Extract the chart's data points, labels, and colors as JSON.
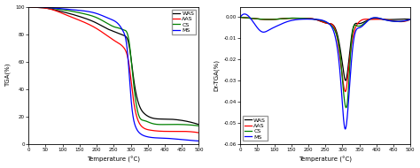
{
  "tga": {
    "x_range": [
      0,
      500
    ],
    "y_range": [
      0,
      100
    ],
    "xlabel": "Temperature (°C)",
    "ylabel": "TGA(%)",
    "xticks": [
      0,
      50,
      100,
      150,
      200,
      250,
      300,
      350,
      400,
      450,
      500
    ],
    "yticks": [
      0,
      20,
      40,
      60,
      80,
      100
    ],
    "legend_labels": [
      "WAS",
      "AAS",
      "CS",
      "MS"
    ],
    "curves": {
      "WAS": {
        "color": "black",
        "points_x": [
          0,
          25,
          50,
          80,
          120,
          160,
          200,
          230,
          260,
          280,
          295,
          310,
          325,
          340,
          360,
          400,
          450,
          500
        ],
        "points_y": [
          100,
          99.5,
          99,
          97.5,
          95,
          92,
          88,
          84,
          81,
          79,
          72,
          45,
          28,
          22,
          19,
          18,
          17,
          14
        ]
      },
      "AAS": {
        "color": "red",
        "points_x": [
          0,
          25,
          50,
          80,
          120,
          160,
          200,
          230,
          260,
          280,
          295,
          308,
          320,
          335,
          355,
          400,
          450,
          500
        ],
        "points_y": [
          100,
          99.5,
          99,
          97,
          93,
          89,
          84,
          79,
          74,
          70,
          58,
          32,
          18,
          12,
          10,
          9,
          9,
          8
        ]
      },
      "CS": {
        "color": "green",
        "points_x": [
          0,
          25,
          50,
          80,
          120,
          160,
          200,
          230,
          255,
          270,
          280,
          295,
          308,
          322,
          338,
          360,
          400,
          450,
          500
        ],
        "points_y": [
          100,
          100,
          99.5,
          98.5,
          97,
          95,
          92,
          88,
          85,
          84,
          83,
          75,
          45,
          22,
          17,
          15,
          14,
          14,
          13
        ]
      },
      "MS": {
        "color": "blue",
        "points_x": [
          0,
          25,
          50,
          80,
          120,
          160,
          200,
          240,
          265,
          278,
          290,
          302,
          315,
          330,
          350,
          400,
          450,
          500
        ],
        "points_y": [
          100,
          100,
          99.5,
          99,
          98,
          97,
          95,
          91,
          87,
          82,
          68,
          30,
          12,
          7,
          5,
          4,
          3,
          2
        ]
      }
    }
  },
  "drtga": {
    "x_range": [
      0,
      500
    ],
    "y_range": [
      -0.06,
      0.005
    ],
    "xlabel": "Temperature (°C)",
    "ylabel": "Dr-TGA(%)",
    "xticks": [
      0,
      50,
      100,
      150,
      200,
      250,
      300,
      350,
      400,
      450,
      500
    ],
    "yticks": [
      0.0,
      -0.01,
      -0.02,
      -0.03,
      -0.04,
      -0.05,
      -0.06
    ],
    "legend_labels": [
      "WAS",
      "AAS",
      "CS",
      "MS"
    ],
    "curves": {
      "WAS": {
        "color": "black",
        "points_x": [
          0,
          30,
          70,
          100,
          140,
          180,
          220,
          260,
          285,
          300,
          310,
          318,
          328,
          345,
          380,
          420,
          460,
          500
        ],
        "points_y": [
          0,
          -0.0005,
          -0.001,
          -0.001,
          -0.0005,
          -0.0005,
          -0.001,
          -0.003,
          -0.008,
          -0.022,
          -0.03,
          -0.022,
          -0.008,
          -0.003,
          -0.001,
          -0.001,
          -0.001,
          -0.001
        ]
      },
      "AAS": {
        "color": "red",
        "points_x": [
          0,
          30,
          70,
          100,
          140,
          180,
          220,
          260,
          285,
          300,
          310,
          318,
          330,
          345,
          380,
          420,
          460,
          500
        ],
        "points_y": [
          0,
          -0.0005,
          -0.001,
          -0.001,
          -0.0005,
          -0.0005,
          -0.001,
          -0.003,
          -0.01,
          -0.028,
          -0.035,
          -0.025,
          -0.01,
          -0.003,
          -0.001,
          -0.001,
          -0.002,
          -0.001
        ]
      },
      "CS": {
        "color": "green",
        "points_x": [
          0,
          30,
          70,
          100,
          140,
          180,
          220,
          260,
          280,
          295,
          305,
          315,
          325,
          342,
          380,
          420,
          460,
          500
        ],
        "points_y": [
          0,
          -0.0005,
          -0.001,
          -0.001,
          -0.0005,
          -0.0005,
          -0.001,
          -0.003,
          -0.007,
          -0.02,
          -0.038,
          -0.04,
          -0.015,
          -0.004,
          -0.001,
          -0.001,
          -0.002,
          -0.001
        ]
      },
      "MS": {
        "color": "blue",
        "points_x": [
          0,
          30,
          65,
          85,
          110,
          140,
          175,
          220,
          260,
          280,
          295,
          308,
          318,
          330,
          350,
          380,
          420,
          460,
          500
        ],
        "points_y": [
          0,
          -0.0005,
          -0.007,
          -0.006,
          -0.004,
          -0.002,
          -0.001,
          -0.001,
          -0.003,
          -0.01,
          -0.03,
          -0.053,
          -0.04,
          -0.015,
          -0.005,
          -0.001,
          -0.001,
          -0.002,
          -0.001
        ]
      }
    }
  },
  "background_color": "#ffffff",
  "plot_bg": "#ffffff",
  "line_width": 0.9,
  "legend_fontsize": 4.5,
  "tick_fontsize": 4.0,
  "axis_label_fontsize": 5.0
}
